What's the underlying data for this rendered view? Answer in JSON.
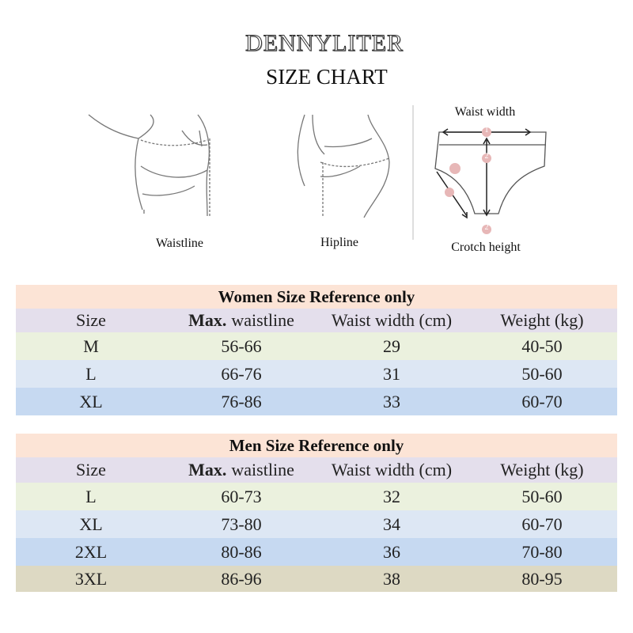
{
  "header": {
    "brand": "DENNYLITER",
    "title": "SIZE CHART"
  },
  "diagram": {
    "waistline": "Waistline",
    "hipline": "Hipline",
    "waist_width": "Waist width",
    "crotch_height": "Crotch height",
    "markers": [
      "1",
      "2",
      "2"
    ]
  },
  "tables": [
    {
      "title": "Women Size Reference only",
      "columns": [
        "Size",
        {
          "bold": "Max.",
          "text": "waistline"
        },
        "Waist width (cm)",
        "Weight (kg)"
      ],
      "rows": [
        [
          "M",
          "56-66",
          "29",
          "40-50"
        ],
        [
          "L",
          "66-76",
          "31",
          "50-60"
        ],
        [
          "XL",
          "76-86",
          "33",
          "60-70"
        ]
      ]
    },
    {
      "title": "Men Size Reference only",
      "columns": [
        "Size",
        {
          "bold": "Max.",
          "text": "waistline"
        },
        "Waist width (cm)",
        "Weight (kg)"
      ],
      "rows": [
        [
          "L",
          "60-73",
          "32",
          "50-60"
        ],
        [
          "XL",
          "73-80",
          "34",
          "60-70"
        ],
        [
          "2XL",
          "80-86",
          "36",
          "70-80"
        ],
        [
          "3XL",
          "86-96",
          "38",
          "80-95"
        ]
      ]
    }
  ]
}
